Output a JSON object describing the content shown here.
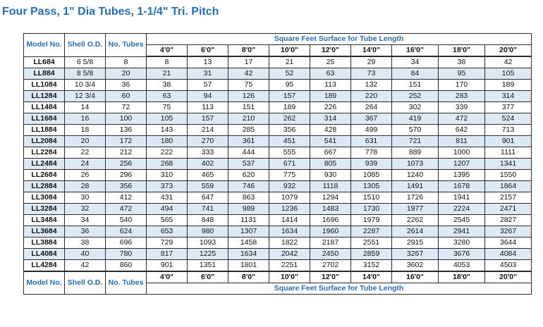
{
  "title": "Four Pass, 1\" Dia Tubes, 1-1/4\" Tri. Pitch",
  "headers": {
    "model": "Model No.",
    "shell": "Shell O.D.",
    "tubes": "No. Tubes",
    "surface": "Square Feet Surface for Tube Length",
    "lengths": [
      "4'0\"",
      "6'0\"",
      "8'0\"",
      "10'0\"",
      "12'0\"",
      "14'0\"",
      "16'0\"",
      "18'0\"",
      "20'0\""
    ]
  },
  "rows": [
    [
      "LL684",
      "6 5/8",
      "8",
      "8",
      "13",
      "17",
      "21",
      "25",
      "29",
      "34",
      "38",
      "42"
    ],
    [
      "LL884",
      "8 5/8",
      "20",
      "21",
      "31",
      "42",
      "52",
      "63",
      "73",
      "84",
      "95",
      "105"
    ],
    [
      "LL1084",
      "10 3/4",
      "36",
      "38",
      "57",
      "75",
      "95",
      "113",
      "132",
      "151",
      "170",
      "189"
    ],
    [
      "LL1284",
      "12 3/4",
      "60",
      "63",
      "94",
      "126",
      "157",
      "189",
      "220",
      "252",
      "283",
      "314"
    ],
    [
      "LL1484",
      "14",
      "72",
      "75",
      "113",
      "151",
      "189",
      "226",
      "264",
      "302",
      "339",
      "377"
    ],
    [
      "LL1684",
      "16",
      "100",
      "105",
      "157",
      "210",
      "262",
      "314",
      "367",
      "419",
      "472",
      "524"
    ],
    [
      "LL1884",
      "18",
      "136",
      "143",
      "214",
      "285",
      "356",
      "428",
      "499",
      "570",
      "642",
      "713"
    ],
    [
      "LL2084",
      "20",
      "172",
      "180",
      "270",
      "361",
      "451",
      "541",
      "631",
      "721",
      "811",
      "901"
    ],
    [
      "LL2284",
      "22",
      "212",
      "222",
      "333",
      "444",
      "555",
      "667",
      "778",
      "889",
      "1000",
      "1111"
    ],
    [
      "LL2484",
      "24",
      "256",
      "268",
      "402",
      "537",
      "671",
      "805",
      "939",
      "1073",
      "1207",
      "1341"
    ],
    [
      "LL2684",
      "26",
      "296",
      "310",
      "465",
      "620",
      "775",
      "930",
      "1085",
      "1240",
      "1395",
      "1550"
    ],
    [
      "LL2884",
      "28",
      "356",
      "373",
      "559",
      "746",
      "932",
      "1118",
      "1305",
      "1491",
      "1678",
      "1864"
    ],
    [
      "LL3084",
      "30",
      "412",
      "431",
      "647",
      "863",
      "1079",
      "1294",
      "1510",
      "1726",
      "1941",
      "2157"
    ],
    [
      "LL3284",
      "32",
      "472",
      "494",
      "741",
      "989",
      "1236",
      "1483",
      "1730",
      "1977",
      "2224",
      "2471"
    ],
    [
      "LL3484",
      "34",
      "540",
      "565",
      "848",
      "1131",
      "1414",
      "1696",
      "1979",
      "2262",
      "2545",
      "2827"
    ],
    [
      "LL3684",
      "36",
      "624",
      "653",
      "980",
      "1307",
      "1634",
      "1960",
      "2287",
      "2614",
      "2941",
      "3267"
    ],
    [
      "LL3884",
      "38",
      "696",
      "729",
      "1093",
      "1458",
      "1822",
      "2187",
      "2551",
      "2915",
      "3280",
      "3644"
    ],
    [
      "LL4084",
      "40",
      "780",
      "817",
      "1225",
      "1634",
      "2042",
      "2450",
      "2859",
      "3267",
      "3676",
      "4084"
    ],
    [
      "LL4284",
      "42",
      "860",
      "901",
      "1351",
      "1801",
      "2251",
      "2702",
      "3152",
      "3602",
      "4053",
      "4503"
    ]
  ]
}
